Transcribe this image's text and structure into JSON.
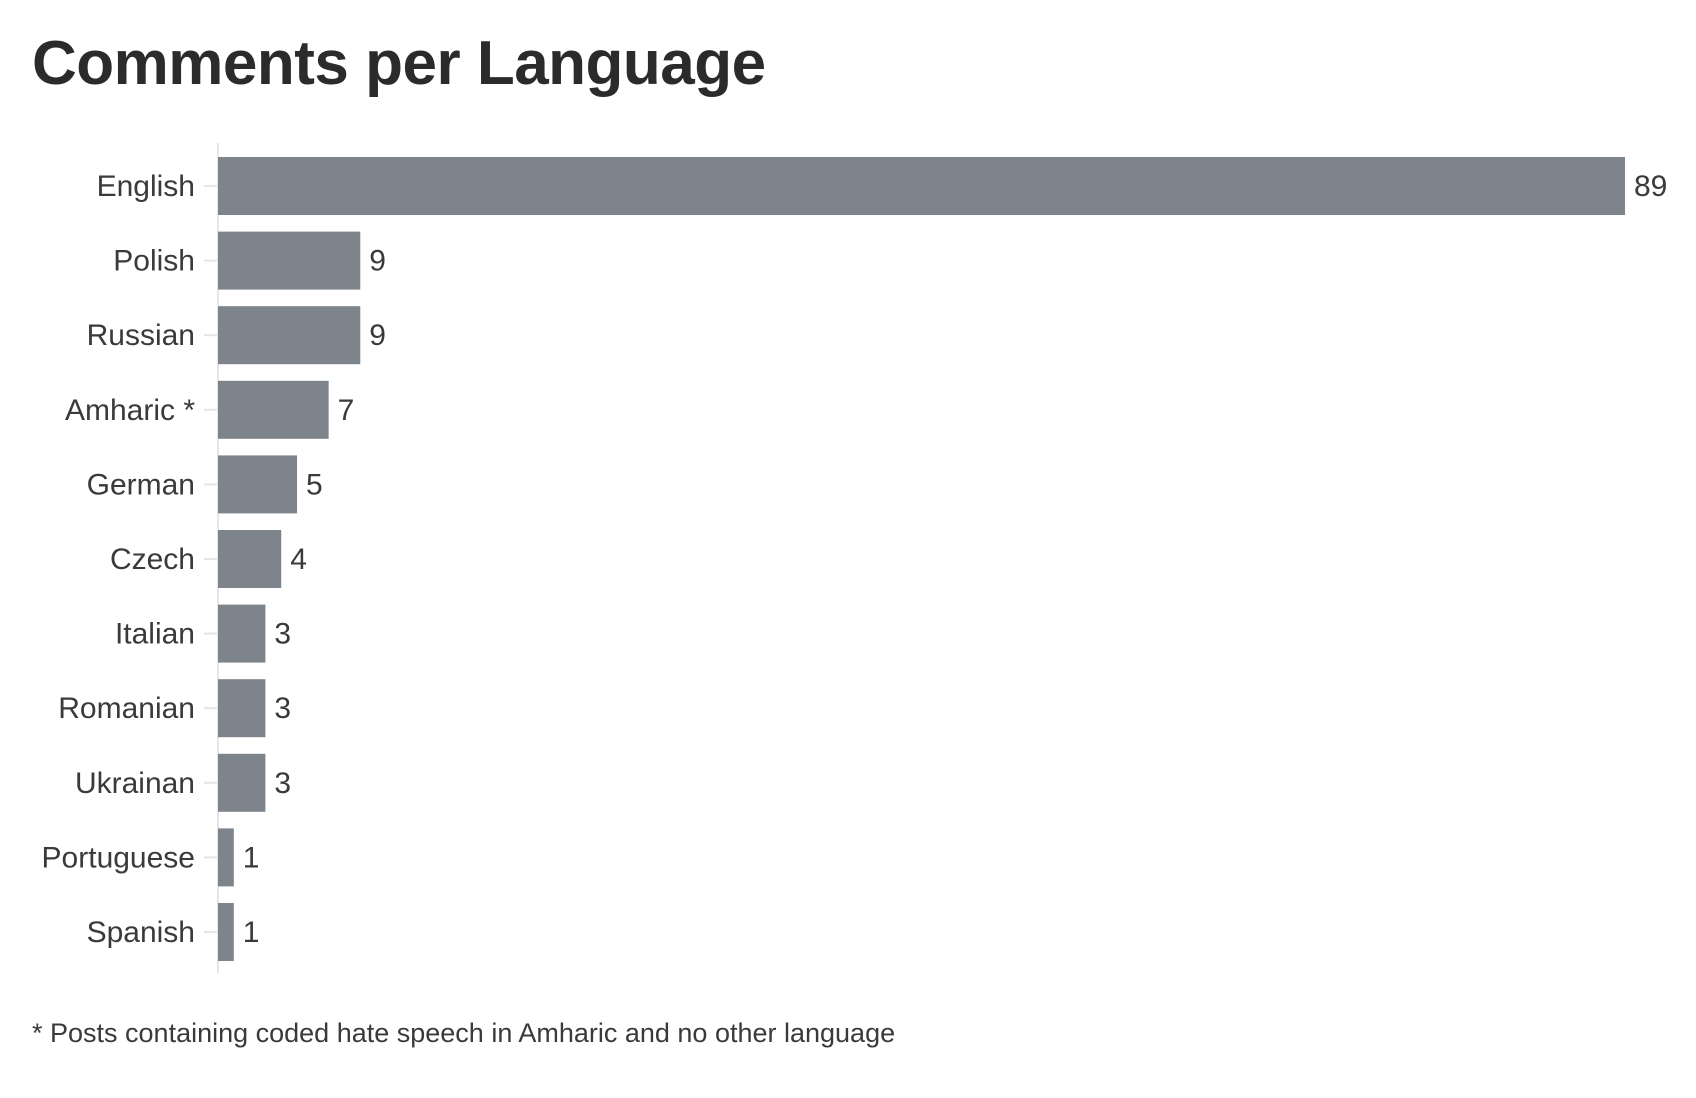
{
  "chart_data": {
    "type": "bar",
    "orientation": "horizontal",
    "title": "Comments per Language",
    "categories": [
      "English",
      "Polish",
      "Russian",
      "Amharic *",
      "German",
      "Czech",
      "Italian",
      "Romanian",
      "Ukrainan",
      "Portuguese",
      "Spanish"
    ],
    "values": [
      89,
      9,
      9,
      7,
      5,
      4,
      3,
      3,
      3,
      1,
      1
    ],
    "xlim": [
      0,
      89
    ],
    "bar_color": "#7e848c",
    "data_labels": true,
    "grid": false,
    "footnote": "* Posts containing coded hate speech in Amharic and no other language"
  }
}
